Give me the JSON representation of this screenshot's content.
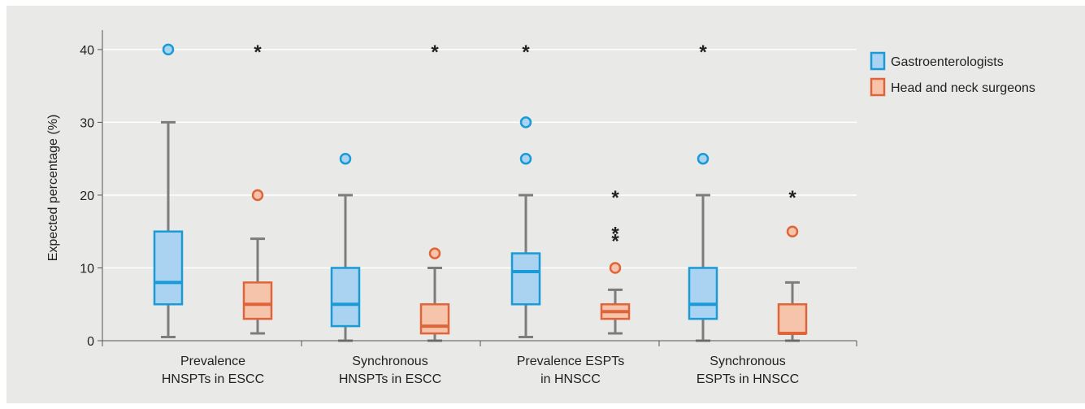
{
  "chart_data": {
    "type": "boxplot",
    "ylabel": "Expected percentage (%)",
    "ylim": [
      0,
      42
    ],
    "yticks": [
      0,
      10,
      20,
      30,
      40
    ],
    "grid": true,
    "legend_position": "right",
    "categories": [
      [
        "Prevalence",
        "HNSPTs in ESCC"
      ],
      [
        "Synchronous",
        "HNSPTs in ESCC"
      ],
      [
        "Prevalence ESPTs",
        "in HNSCC"
      ],
      [
        "Synchronous",
        "ESPTs in HNSCC"
      ]
    ],
    "series": [
      {
        "name": "Gastroenterologists",
        "stroke": "#1a9ad6",
        "fill": "#a9d3f0",
        "boxes": [
          {
            "min": 0.5,
            "q1": 5,
            "median": 8,
            "q3": 15,
            "max": 30,
            "outliers": [
              40
            ],
            "extremes": []
          },
          {
            "min": 0,
            "q1": 2,
            "median": 5,
            "q3": 10,
            "max": 20,
            "outliers": [
              25
            ],
            "extremes": []
          },
          {
            "min": 0.5,
            "q1": 5,
            "median": 9.5,
            "q3": 12,
            "max": 20,
            "outliers": [
              25,
              30
            ],
            "extremes": [
              40
            ]
          },
          {
            "min": 0,
            "q1": 3,
            "median": 5,
            "q3": 10,
            "max": 20,
            "outliers": [
              25
            ],
            "extremes": [
              40
            ]
          }
        ]
      },
      {
        "name": "Head and neck surgeons",
        "stroke": "#e0643a",
        "fill": "#f5c4ab",
        "boxes": [
          {
            "min": 1,
            "q1": 3,
            "median": 5,
            "q3": 8,
            "max": 14,
            "outliers": [
              20
            ],
            "extremes": [
              40
            ]
          },
          {
            "min": 0,
            "q1": 1,
            "median": 2,
            "q3": 5,
            "max": 10,
            "outliers": [
              12
            ],
            "extremes": [
              40
            ]
          },
          {
            "min": 1,
            "q1": 3,
            "median": 4,
            "q3": 5,
            "max": 7,
            "outliers": [
              10
            ],
            "extremes": [
              14,
              15,
              20
            ]
          },
          {
            "min": 0,
            "q1": 1,
            "median": 1,
            "q3": 5,
            "max": 8,
            "outliers": [
              15
            ],
            "extremes": [
              20
            ]
          }
        ]
      }
    ],
    "whisker_color": "#7d7d7d",
    "background_color": "#e9e9e7"
  }
}
